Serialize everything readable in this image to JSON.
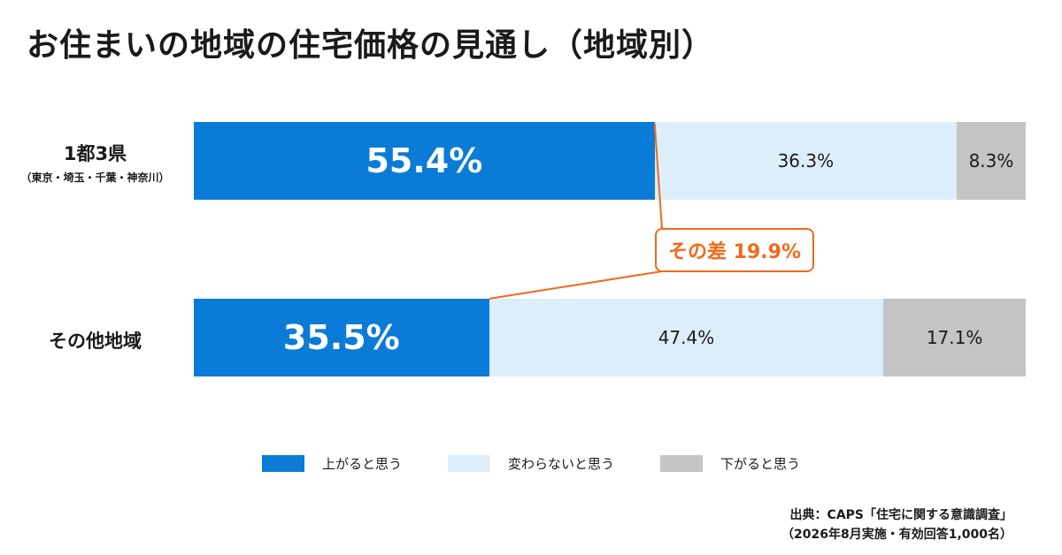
{
  "title": "お住まいの地域の住宅価格の見通し（地域別）",
  "chart_data": {
    "type": "bar",
    "orientation": "horizontal",
    "stacked": true,
    "percent_stacked": true,
    "categories": [
      {
        "label": "1都3県",
        "sublabel": "（東京・埼玉・千葉・神奈川）"
      },
      {
        "label": "その他地域",
        "sublabel": ""
      }
    ],
    "series": [
      {
        "name": "上がると思う",
        "color": "#0a7bd7",
        "values": [
          55.4,
          35.5
        ],
        "labels": [
          "55.4%",
          "35.5%"
        ]
      },
      {
        "name": "変わらないと思う",
        "color": "#ddeefb",
        "values": [
          36.3,
          47.4
        ],
        "labels": [
          "36.3%",
          "47.4%"
        ]
      },
      {
        "name": "下がると思う",
        "color": "#c4c4c4",
        "values": [
          8.3,
          17.1
        ],
        "labels": [
          "8.3%",
          "17.1%"
        ]
      }
    ],
    "annotation": {
      "text": "その差 19.9%",
      "color": "#f26a1b"
    },
    "legend_position": "bottom",
    "grid": false
  },
  "source": {
    "line1": "出典：CAPS「住宅に関する意識調査」",
    "line2": "（2026年8月実施・有効回答1,000名）"
  }
}
